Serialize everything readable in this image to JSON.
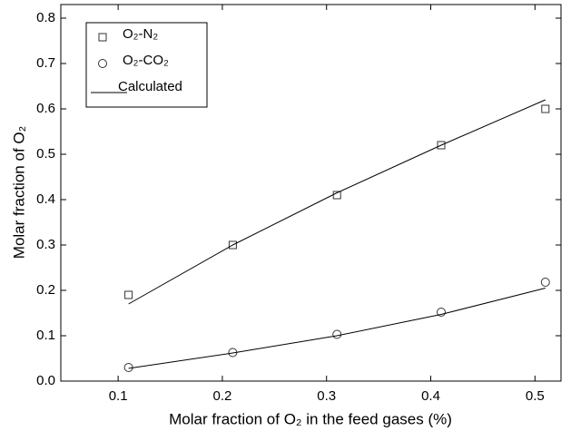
{
  "chart_data": {
    "type": "scatter",
    "xlabel": "Molar fraction of O₂ in the feed gases (%)",
    "ylabel": "Molar fraction of O₂",
    "x": [
      0.11,
      0.21,
      0.31,
      0.41,
      0.51
    ],
    "series": [
      {
        "name": "O₂-N₂",
        "marker": "square",
        "color": "#333333",
        "values": [
          0.19,
          0.3,
          0.41,
          0.52,
          0.6
        ]
      },
      {
        "name": "O₂-CO₂",
        "marker": "circle",
        "color": "#333333",
        "values": [
          0.03,
          0.063,
          0.103,
          0.152,
          0.218
        ]
      },
      {
        "name": "Calculated",
        "marker": "line",
        "color": "#000000",
        "lines": [
          [
            0.17,
            0.3,
            0.415,
            0.52,
            0.62
          ],
          [
            0.028,
            0.062,
            0.1,
            0.147,
            0.205
          ]
        ]
      }
    ],
    "xlim": [
      0.045,
      0.525
    ],
    "xticks": [
      0.1,
      0.2,
      0.3,
      0.4,
      0.5
    ],
    "ylim": [
      0,
      0.83
    ],
    "yticks": [
      {
        "value": 0,
        "label": "0.0"
      },
      0.1,
      0.2,
      0.3,
      0.4,
      0.5,
      0.6,
      0.7,
      0.8
    ],
    "legend": "upper left"
  }
}
